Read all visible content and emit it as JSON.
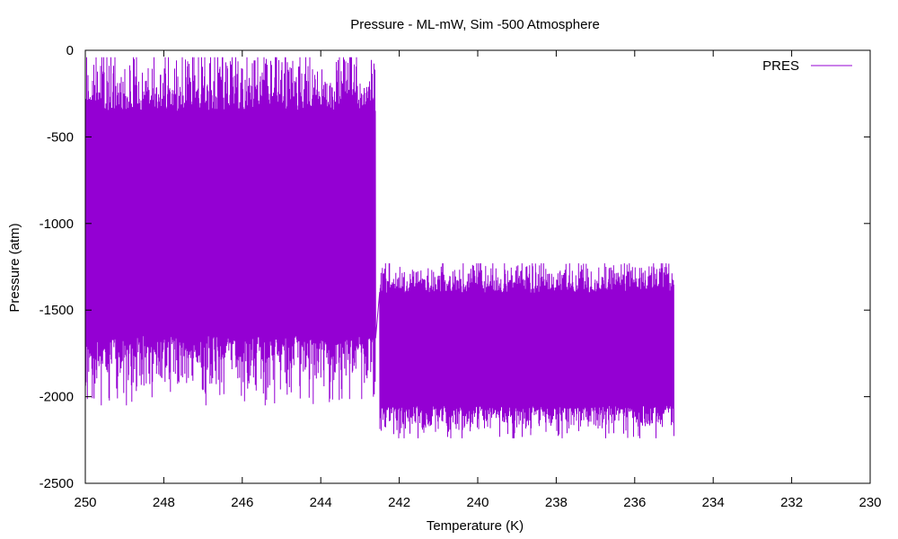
{
  "chart_data": {
    "type": "line",
    "title": "Pressure - ML-mW, Sim -500 Atmosphere",
    "xlabel": "Temperature (K)",
    "ylabel": "Pressure (atm)",
    "xlim": [
      250,
      230
    ],
    "ylim": [
      -2500,
      0
    ],
    "x_reversed": true,
    "xticks": [
      250,
      248,
      246,
      244,
      242,
      240,
      238,
      236,
      234,
      232,
      230
    ],
    "yticks": [
      0,
      -500,
      -1000,
      -1500,
      -2000,
      -2500
    ],
    "grid": false,
    "legend_position": "top-right",
    "series": [
      {
        "name": "PRES",
        "color": "#9400d3",
        "description_segments": [
          {
            "x_range": [
              250,
              242.6
            ],
            "mean": -1000,
            "band": [
              -1650,
              -350
            ],
            "extremes": [
              -2050,
              -40
            ]
          },
          {
            "x_range": [
              242.5,
              235.0
            ],
            "mean": -1720,
            "band": [
              -2050,
              -1400
            ],
            "extremes": [
              -2240,
              -1230
            ]
          }
        ]
      }
    ]
  }
}
